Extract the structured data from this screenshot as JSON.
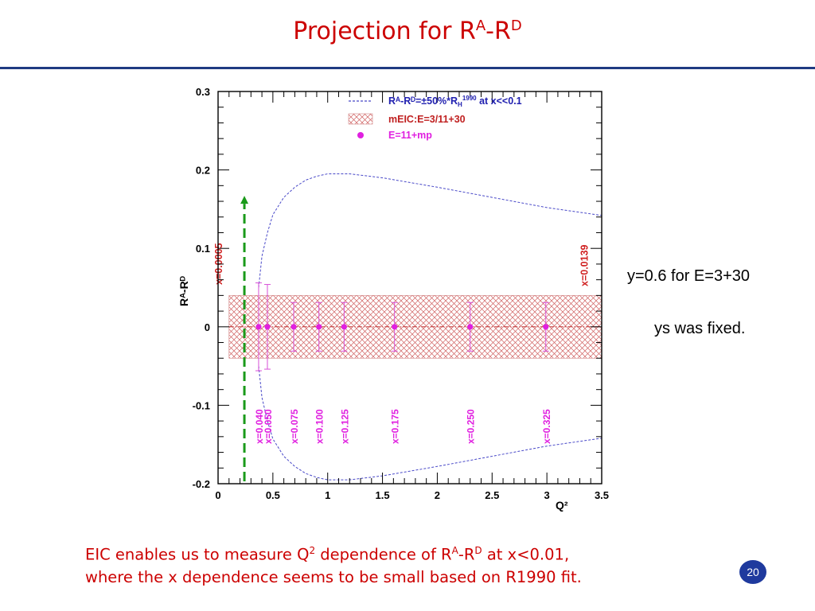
{
  "slide": {
    "title_main": "Projection for R",
    "title_sup_a": "A",
    "title_mid": "-R",
    "title_sup_d": "D",
    "note_1": "y=0.6 for E=3+30",
    "note_2": "ys was fixed.",
    "caption_line1_a": "EIC enables us to measure Q",
    "caption_line1_sup2": "2",
    "caption_line1_b": " dependence of R",
    "caption_line1_supA": "A",
    "caption_line1_c": "-R",
    "caption_line1_supD": "D",
    "caption_line1_d": " at x<0.01,",
    "caption_line2": "where the x dependence seems to be small based on R1990 fit.",
    "page_number": "20"
  },
  "chart_data": {
    "type": "scatter",
    "xlabel": "Q²",
    "ylabel": "Rᴬ-Rᴰ",
    "xlim": [
      0,
      3.5
    ],
    "ylim": [
      -0.2,
      0.3
    ],
    "xticks": [
      "0",
      "0.5",
      "1",
      "1.5",
      "2",
      "2.5",
      "3",
      "3.5"
    ],
    "yticks": [
      "-0.2",
      "-0.1",
      "0",
      "0.1",
      "0.2",
      "0.3"
    ],
    "legend_position": "top",
    "legend": [
      {
        "label": "Rᴬ-Rᴰ=±50%*R",
        "sub": "H",
        "sup": "1990",
        "tail": " at x<<0.1",
        "style": "dashed-line",
        "color": "#4848c8"
      },
      {
        "label": "mEIC:E=3/11+30",
        "style": "hatched-band",
        "color": "#c03030"
      },
      {
        "label": "E=11+mp",
        "style": "marker",
        "color": "#e020e0"
      }
    ],
    "band": {
      "y_low": -0.04,
      "y_high": 0.04,
      "x_low": 0.1,
      "x_high": 3.5,
      "color": "#c03030"
    },
    "points": [
      {
        "x": 0.37,
        "y": 0.0,
        "err": 0.056,
        "label": "x=0.040"
      },
      {
        "x": 0.45,
        "y": 0.0,
        "err": 0.054,
        "label": "x=0.050"
      },
      {
        "x": 0.69,
        "y": 0.0,
        "err": 0.031,
        "label": "x=0.075"
      },
      {
        "x": 0.92,
        "y": 0.0,
        "err": 0.031,
        "label": "x=0.100"
      },
      {
        "x": 1.15,
        "y": 0.0,
        "err": 0.031,
        "label": "x=0.125"
      },
      {
        "x": 1.61,
        "y": 0.0,
        "err": 0.031,
        "label": "x=0.175"
      },
      {
        "x": 2.3,
        "y": 0.0,
        "err": 0.031,
        "label": "x=0.250"
      },
      {
        "x": 2.99,
        "y": 0.0,
        "err": 0.031,
        "label": "x=0.325"
      }
    ],
    "envelope_upper": [
      [
        0.37,
        0.05
      ],
      [
        0.4,
        0.09
      ],
      [
        0.45,
        0.12
      ],
      [
        0.5,
        0.143
      ],
      [
        0.6,
        0.165
      ],
      [
        0.7,
        0.178
      ],
      [
        0.8,
        0.187
      ],
      [
        0.9,
        0.192
      ],
      [
        1.0,
        0.195
      ],
      [
        1.2,
        0.195
      ],
      [
        1.5,
        0.19
      ],
      [
        2.0,
        0.178
      ],
      [
        2.5,
        0.165
      ],
      [
        3.0,
        0.152
      ],
      [
        3.5,
        0.142
      ]
    ],
    "envelope_lower": [
      [
        0.37,
        -0.05
      ],
      [
        0.4,
        -0.09
      ],
      [
        0.45,
        -0.12
      ],
      [
        0.5,
        -0.143
      ],
      [
        0.6,
        -0.165
      ],
      [
        0.7,
        -0.178
      ],
      [
        0.8,
        -0.187
      ],
      [
        0.9,
        -0.192
      ],
      [
        1.0,
        -0.195
      ],
      [
        1.2,
        -0.195
      ],
      [
        1.5,
        -0.19
      ],
      [
        2.0,
        -0.178
      ],
      [
        2.5,
        -0.165
      ],
      [
        3.0,
        -0.152
      ],
      [
        3.5,
        -0.142
      ]
    ],
    "zero_line": {
      "y": 0,
      "color": "#c03030",
      "style": "dash-dot"
    },
    "x_limit_labels": [
      {
        "label": "x=0.0005",
        "x": 0.1,
        "y": 0.09,
        "color": "#d02020"
      },
      {
        "label": "x=0.0139",
        "x": 3.44,
        "y": 0.09,
        "color": "#d02020"
      }
    ],
    "arrow": {
      "x": 0.24,
      "y_from": -0.197,
      "y_to": 0.167,
      "color": "#1a9a1a",
      "style": "dashed"
    }
  }
}
